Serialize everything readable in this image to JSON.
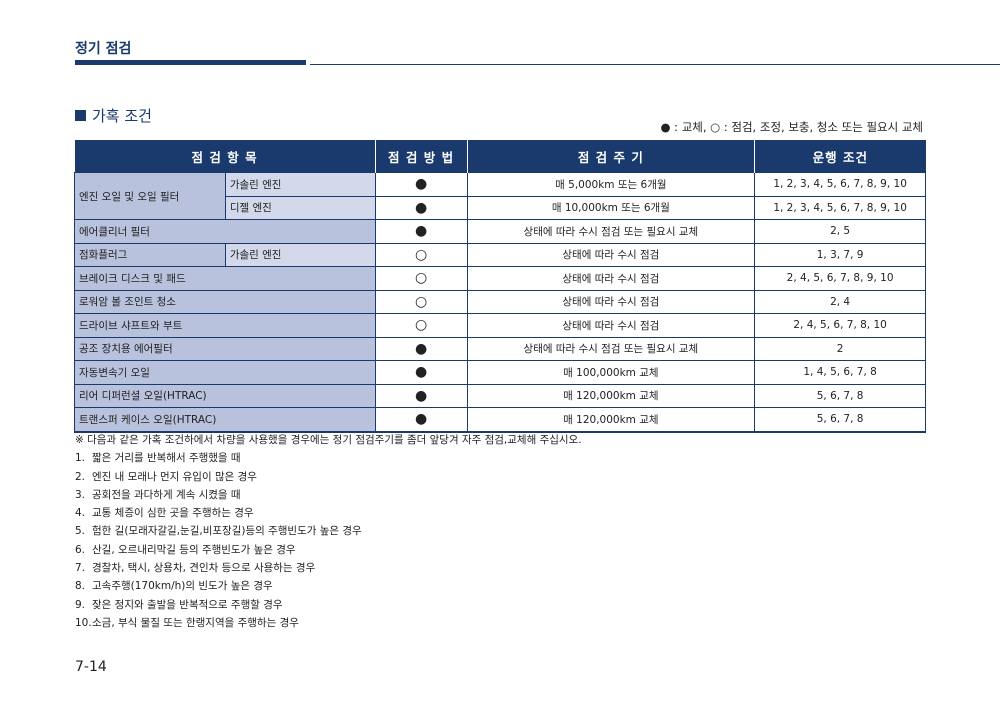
{
  "header": {
    "title": "정기 점검"
  },
  "section": {
    "title": "가혹 조건"
  },
  "legend": "● : 교체, ○ : 점검, 조정, 보충, 청소 또는 필요시 교체",
  "table": {
    "headers": [
      "점 검 항 목",
      "점 검 방 법",
      "점 검 주 기",
      "운행 조건"
    ],
    "rows": [
      {
        "item": "엔진 오일 및 오일 필터",
        "sub": "가솔린 엔진",
        "method": "●",
        "interval": "매 5,000km 또는 6개월",
        "conditions": "1, 2, 3, 4, 5, 6, 7, 8, 9, 10"
      },
      {
        "item": "",
        "sub": "디젤 엔진",
        "method": "●",
        "interval": "매 10,000km 또는 6개월",
        "conditions": "1, 2, 3, 4, 5, 6, 7, 8, 9, 10"
      },
      {
        "item": "에어클리너 필터",
        "sub": "",
        "method": "●",
        "interval": "상태에 따라 수시 점검 또는 필요시 교체",
        "conditions": "2, 5"
      },
      {
        "item": "점화플러그",
        "sub": "가솔린 엔진",
        "method": "○",
        "interval": "상태에 따라 수시 점검",
        "conditions": "1, 3, 7, 9"
      },
      {
        "item": "브레이크 디스크 및 패드",
        "sub": "",
        "method": "○",
        "interval": "상태에 따라 수시 점검",
        "conditions": "2, 4, 5, 6, 7, 8, 9, 10"
      },
      {
        "item": "로워암 볼 조인트 청소",
        "sub": "",
        "method": "○",
        "interval": "상태에 따라 수시 점검",
        "conditions": "2, 4"
      },
      {
        "item": "드라이브 샤프트와 부트",
        "sub": "",
        "method": "○",
        "interval": "상태에 따라 수시 점검",
        "conditions": "2, 4, 5, 6, 7, 8, 10"
      },
      {
        "item": "공조 장치용 에어필터",
        "sub": "",
        "method": "●",
        "interval": "상태에 따라 수시 점검 또는 필요시 교체",
        "conditions": "2"
      },
      {
        "item": "자동변속기 오일",
        "sub": "",
        "method": "●",
        "interval": "매 100,000km 교체",
        "conditions": "1, 4, 5, 6, 7, 8"
      },
      {
        "item": "리어 디퍼런셜 오일(HTRAC)",
        "sub": "",
        "method": "●",
        "interval": "매 120,000km 교체",
        "conditions": "5, 6, 7, 8"
      },
      {
        "item": "트랜스퍼 케이스 오일(HTRAC)",
        "sub": "",
        "method": "●",
        "interval": "매 120,000km 교체",
        "conditions": "5, 6, 7, 8"
      }
    ]
  },
  "notes": {
    "intro": "※  다음과 같은 가혹 조건하에서 차량을 사용했을 경우에는 정기 점검주기를 좀더 앞당겨 자주 점검,교체해 주십시오.",
    "items": [
      {
        "num": "1.",
        "text": "짧은 거리를 반복해서 주행했을 때"
      },
      {
        "num": "2.",
        "text": "엔진 내 모래나 먼지 유입이 많은 경우"
      },
      {
        "num": "3.",
        "text": "공회전을 과다하게 계속 시켰을 때"
      },
      {
        "num": "4.",
        "text": "교통 체증이 심한 곳을 주행하는 경우"
      },
      {
        "num": "5.",
        "text": "험한 길(모래자갈길,눈길,비포장길)등의 주행빈도가 높은 경우"
      },
      {
        "num": "6.",
        "text": "산길, 오르내리막길 등의 주행빈도가 높은 경우"
      },
      {
        "num": "7.",
        "text": "경찰차, 택시, 상용차, 견인차 등으로 사용하는 경우"
      },
      {
        "num": "8.",
        "text": "고속주행(170km/h)의 빈도가 높은 경우"
      },
      {
        "num": "9.",
        "text": "잦은 정지와 출발을 반복적으로 주행할 경우"
      },
      {
        "num": "10.",
        "text": "소금, 부식 물질 또는 한랭지역을 주행하는 경우"
      }
    ]
  },
  "page_number": "7-14",
  "colors": {
    "navy": "#1a3a6e",
    "item_bg": "#b9c2dd",
    "sub_bg": "#d3d9ea"
  }
}
